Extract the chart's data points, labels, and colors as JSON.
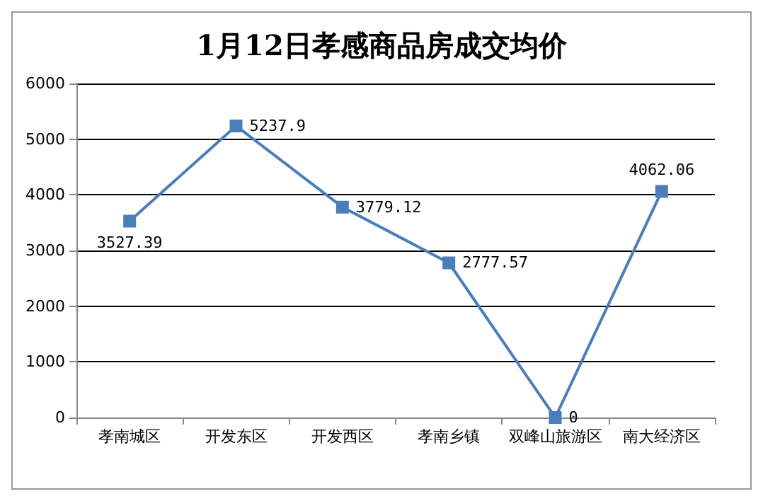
{
  "chart_data": {
    "type": "line",
    "title": "1月12日孝感商品房成交均价",
    "categories": [
      "孝南城区",
      "开发东区",
      "开发西区",
      "孝南乡镇",
      "双峰山旅游区",
      "南大经济区"
    ],
    "series": [
      {
        "color": "#4a7ebb",
        "values": [
          3527.39,
          5237.9,
          3779.12,
          2777.57,
          0,
          4062.06
        ]
      }
    ],
    "ylim": [
      0,
      6000
    ],
    "yticks": [
      0,
      1000,
      2000,
      3000,
      4000,
      5000,
      6000
    ],
    "grid": "y",
    "marker": "square",
    "line_style": "solid",
    "data_labels": true
  }
}
